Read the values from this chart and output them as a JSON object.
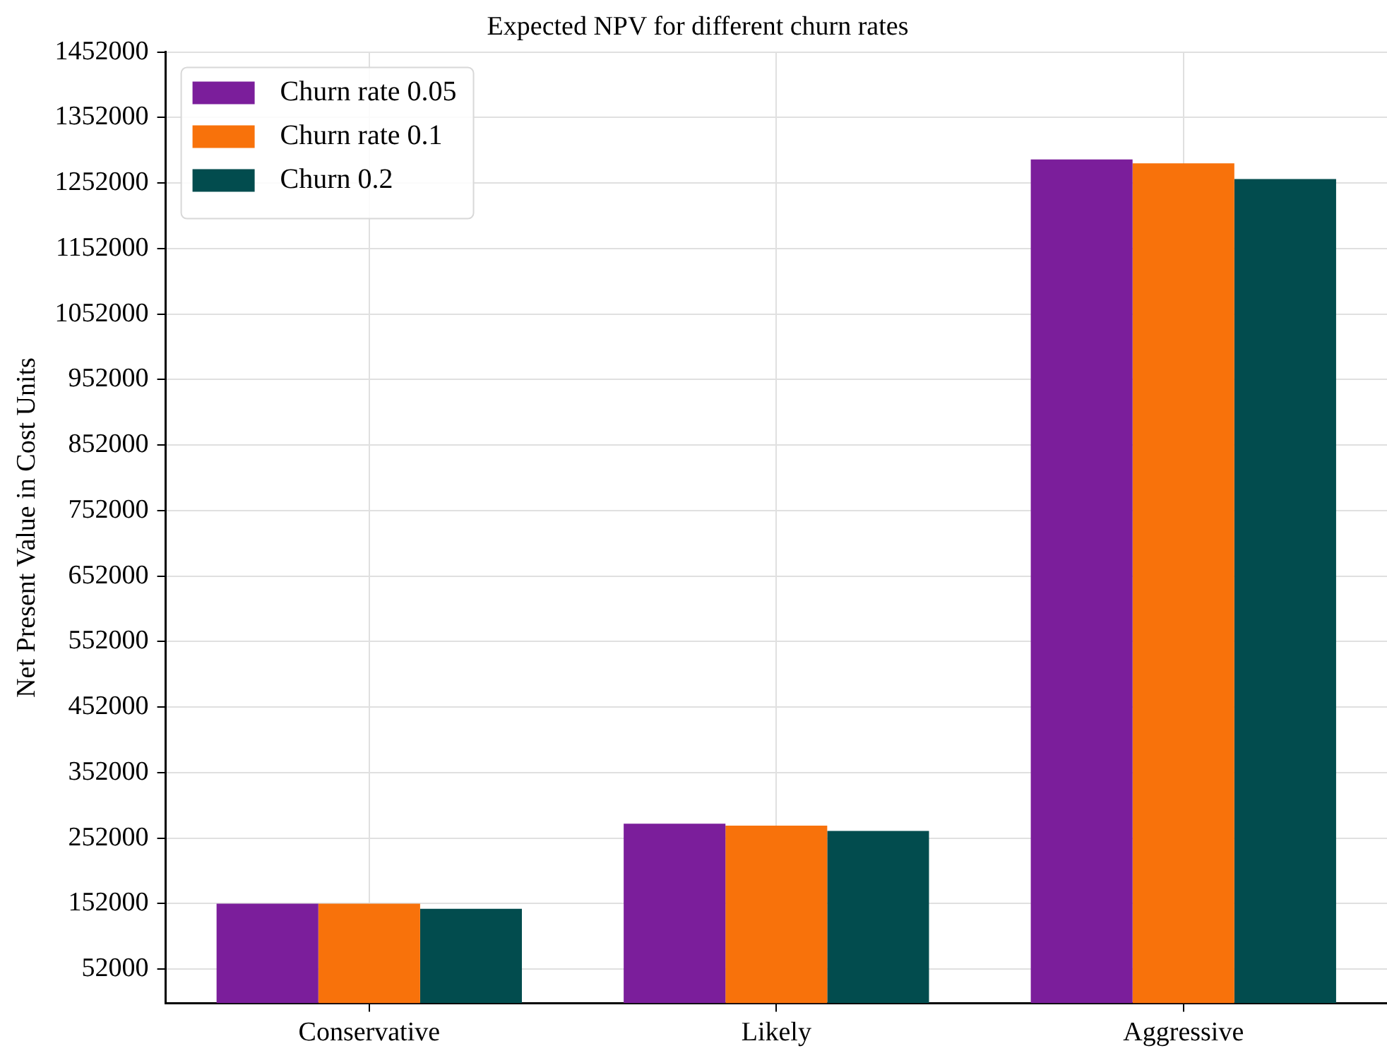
{
  "chart_data": {
    "type": "bar",
    "title": "Expected NPV for different churn rates",
    "ylabel": "Net Present Value in Cost Units",
    "categories": [
      "Conservative",
      "Likely",
      "Aggressive"
    ],
    "series": [
      {
        "name": "Churn rate 0.05",
        "color": "#7b1e9b",
        "values": [
          152000,
          274000,
          1288000
        ]
      },
      {
        "name": "Churn rate 0.1",
        "color": "#f8720b",
        "values": [
          152000,
          271000,
          1282000
        ]
      },
      {
        "name": "Churn 0.2",
        "color": "#024c4e",
        "values": [
          144000,
          263000,
          1258000
        ]
      }
    ],
    "ylim": [
      0,
      1452000
    ],
    "yticks": [
      52000,
      152000,
      252000,
      352000,
      452000,
      552000,
      652000,
      752000,
      852000,
      952000,
      1052000,
      1152000,
      1252000,
      1352000,
      1452000
    ],
    "grid": true,
    "legend": "top left"
  }
}
